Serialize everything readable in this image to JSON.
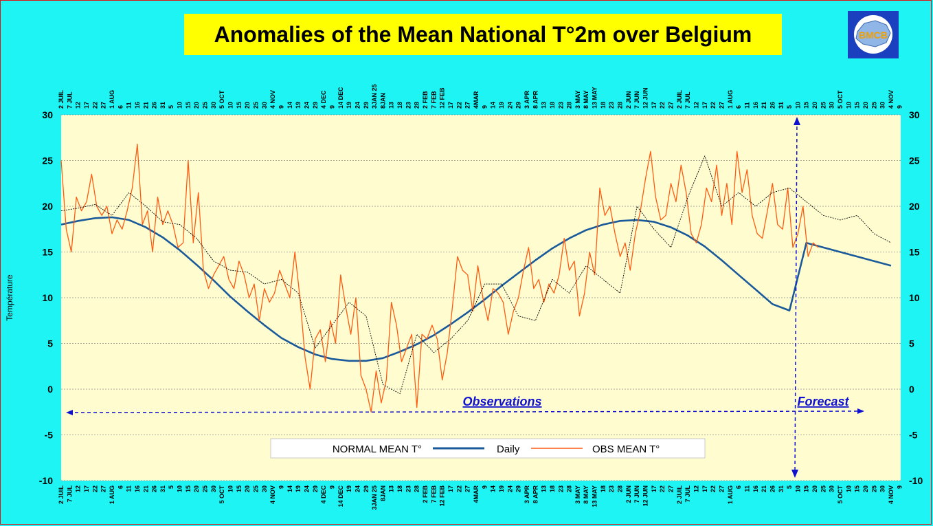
{
  "title": "Anomalies of the Mean National T°2m over Belgium",
  "logo": {
    "text": "BMCB",
    "icon": "belgium-map-logo-icon"
  },
  "colors": {
    "background": "#1ef4f4",
    "plot_bg": "#fffdd0",
    "normal": "#1a5a9a",
    "obs": "#ff5a10",
    "daily_mean": "#000000",
    "annotation": "#1010d0"
  },
  "annotations": {
    "observations": "Observations",
    "forecast": "Forecast"
  },
  "chart_data": {
    "type": "line",
    "ylabel": "Température",
    "ylim": [
      -10,
      30
    ],
    "yticks": [
      -10,
      -5,
      0,
      5,
      10,
      15,
      20,
      25,
      30
    ],
    "grid": true,
    "legend_position": "bottom-center",
    "xlim_days": [
      0,
      490
    ],
    "date_ticks": [
      {
        "label": "2 JUIL",
        "day": 0
      },
      {
        "label": "7 JUL",
        "day": 5
      },
      {
        "label": "12",
        "day": 10
      },
      {
        "label": "17",
        "day": 15
      },
      {
        "label": "22",
        "day": 20
      },
      {
        "label": "27",
        "day": 25
      },
      {
        "label": "1 AUG",
        "day": 30
      },
      {
        "label": "6",
        "day": 35
      },
      {
        "label": "11",
        "day": 40
      },
      {
        "label": "16",
        "day": 45
      },
      {
        "label": "21",
        "day": 50
      },
      {
        "label": "26",
        "day": 55
      },
      {
        "label": "31",
        "day": 60
      },
      {
        "label": "5",
        "day": 65
      },
      {
        "label": "10",
        "day": 70
      },
      {
        "label": "15",
        "day": 75
      },
      {
        "label": "20",
        "day": 80
      },
      {
        "label": "25",
        "day": 85
      },
      {
        "label": "30",
        "day": 90
      },
      {
        "label": "5 OCT",
        "day": 95
      },
      {
        "label": "10",
        "day": 100
      },
      {
        "label": "15",
        "day": 105
      },
      {
        "label": "20",
        "day": 110
      },
      {
        "label": "25",
        "day": 115
      },
      {
        "label": "30",
        "day": 120
      },
      {
        "label": "4 NOV",
        "day": 125
      },
      {
        "label": "9",
        "day": 130
      },
      {
        "label": "14",
        "day": 135
      },
      {
        "label": "19",
        "day": 140
      },
      {
        "label": "24",
        "day": 145
      },
      {
        "label": "29",
        "day": 150
      },
      {
        "label": "4 DEC",
        "day": 155
      },
      {
        "label": "9",
        "day": 160
      },
      {
        "label": "14 DEC",
        "day": 165
      },
      {
        "label": "19",
        "day": 170
      },
      {
        "label": "24",
        "day": 175
      },
      {
        "label": "29",
        "day": 180
      },
      {
        "label": "3JAN 25",
        "day": 185
      },
      {
        "label": "8JAN",
        "day": 190
      },
      {
        "label": "13",
        "day": 195
      },
      {
        "label": "18",
        "day": 200
      },
      {
        "label": "23",
        "day": 205
      },
      {
        "label": "28",
        "day": 210
      },
      {
        "label": "2 FEB",
        "day": 215
      },
      {
        "label": "7 FEB",
        "day": 220
      },
      {
        "label": "12 FEB",
        "day": 225
      },
      {
        "label": "17",
        "day": 230
      },
      {
        "label": "22",
        "day": 235
      },
      {
        "label": "27",
        "day": 240
      },
      {
        "label": "4MAR",
        "day": 245
      },
      {
        "label": "9",
        "day": 250
      },
      {
        "label": "14",
        "day": 255
      },
      {
        "label": "19",
        "day": 260
      },
      {
        "label": "24",
        "day": 265
      },
      {
        "label": "29",
        "day": 270
      },
      {
        "label": "3 APR",
        "day": 275
      },
      {
        "label": "8 APR",
        "day": 280
      },
      {
        "label": "13",
        "day": 285
      },
      {
        "label": "18",
        "day": 290
      },
      {
        "label": "23",
        "day": 295
      },
      {
        "label": "28",
        "day": 300
      },
      {
        "label": "3 MAY",
        "day": 305
      },
      {
        "label": "8 MAY",
        "day": 310
      },
      {
        "label": "13 MAY",
        "day": 315
      },
      {
        "label": "18",
        "day": 320
      },
      {
        "label": "23",
        "day": 325
      },
      {
        "label": "28",
        "day": 330
      },
      {
        "label": "2 JUN",
        "day": 335
      },
      {
        "label": "7 JUN",
        "day": 340
      },
      {
        "label": "12 JUN",
        "day": 345
      },
      {
        "label": "17",
        "day": 350
      },
      {
        "label": "22",
        "day": 355
      },
      {
        "label": "27",
        "day": 360
      },
      {
        "label": "2 JUIL",
        "day": 365
      },
      {
        "label": "7 JUL",
        "day": 370
      },
      {
        "label": "12",
        "day": 375
      },
      {
        "label": "17",
        "day": 380
      },
      {
        "label": "22",
        "day": 385
      },
      {
        "label": "27",
        "day": 390
      },
      {
        "label": "1 AUG",
        "day": 395
      },
      {
        "label": "6",
        "day": 400
      },
      {
        "label": "11",
        "day": 405
      },
      {
        "label": "16",
        "day": 410
      },
      {
        "label": "21",
        "day": 415
      },
      {
        "label": "26",
        "day": 420
      },
      {
        "label": "31",
        "day": 425
      },
      {
        "label": "5",
        "day": 430
      },
      {
        "label": "10",
        "day": 435
      },
      {
        "label": "15",
        "day": 440
      },
      {
        "label": "20",
        "day": 445
      },
      {
        "label": "25",
        "day": 450
      },
      {
        "label": "30",
        "day": 455
      },
      {
        "label": "5 OCT",
        "day": 460
      },
      {
        "label": "10",
        "day": 465
      },
      {
        "label": "15",
        "day": 470
      },
      {
        "label": "20",
        "day": 475
      },
      {
        "label": "25",
        "day": 480
      },
      {
        "label": "30",
        "day": 485
      },
      {
        "label": "4 NOV",
        "day": 490
      },
      {
        "label": "9",
        "day": 495
      }
    ],
    "series": [
      {
        "name": "NORMAL MEAN T°",
        "style": "thin-dotted",
        "x_days": [
          0,
          10,
          20,
          30,
          40,
          50,
          60,
          70,
          80,
          90,
          100,
          110,
          120,
          130,
          140,
          150,
          160,
          170,
          180,
          190,
          200,
          210,
          220,
          230,
          240,
          250,
          260,
          270,
          280,
          290,
          300,
          310,
          320,
          330,
          340,
          350,
          360,
          370,
          380,
          390,
          400,
          410,
          420,
          430,
          440,
          450,
          460,
          470,
          480,
          490
        ],
        "values": [
          19.5,
          19.8,
          20.2,
          19.0,
          21.5,
          20.0,
          18.3,
          18.0,
          16.5,
          14.0,
          13.0,
          12.8,
          11.5,
          12.0,
          10.5,
          4.5,
          7.0,
          9.5,
          8.0,
          0.5,
          -0.5,
          6.0,
          4.0,
          5.5,
          7.5,
          11.5,
          11.5,
          8.0,
          7.5,
          12.0,
          10.5,
          13.5,
          12.0,
          10.5,
          20.0,
          17.5,
          15.5,
          21.0,
          25.5,
          20.0,
          21.5,
          20.0,
          21.5,
          22.0,
          20.5,
          19.0,
          18.5,
          19.0,
          17.0,
          16.0
        ]
      },
      {
        "name": "Daily",
        "style": "thick-solid",
        "x_days": [
          0,
          10,
          20,
          30,
          40,
          50,
          60,
          70,
          80,
          90,
          100,
          110,
          120,
          130,
          140,
          150,
          160,
          170,
          180,
          190,
          200,
          210,
          220,
          230,
          240,
          250,
          260,
          270,
          280,
          290,
          300,
          310,
          320,
          330,
          340,
          350,
          360,
          370,
          380,
          390,
          400,
          410,
          420,
          430,
          440,
          450,
          460,
          470,
          480,
          490
        ],
        "values": [
          18.0,
          18.4,
          18.7,
          18.8,
          18.5,
          17.7,
          16.6,
          15.2,
          13.6,
          11.9,
          10.1,
          8.5,
          7.0,
          5.6,
          4.6,
          3.8,
          3.3,
          3.1,
          3.1,
          3.4,
          4.1,
          4.9,
          5.9,
          7.1,
          8.4,
          9.8,
          11.3,
          12.7,
          14.1,
          15.4,
          16.5,
          17.4,
          18.0,
          18.4,
          18.5,
          18.3,
          17.7,
          16.8,
          15.6,
          14.1,
          12.5,
          10.9,
          9.3,
          8.6,
          16.0,
          15.5,
          15.0,
          14.5,
          14.0,
          13.5
        ]
      },
      {
        "name": "OBS MEAN T°",
        "style": "jagged",
        "x_days": [
          0,
          3,
          6,
          9,
          12,
          15,
          18,
          21,
          24,
          27,
          30,
          33,
          36,
          39,
          42,
          45,
          48,
          51,
          54,
          57,
          60,
          63,
          66,
          69,
          72,
          75,
          78,
          81,
          84,
          87,
          90,
          93,
          96,
          99,
          102,
          105,
          108,
          111,
          114,
          117,
          120,
          123,
          126,
          129,
          132,
          135,
          138,
          141,
          144,
          147,
          150,
          153,
          156,
          159,
          162,
          165,
          168,
          171,
          174,
          177,
          180,
          183,
          186,
          189,
          192,
          195,
          198,
          201,
          204,
          207,
          210,
          213,
          216,
          219,
          222,
          225,
          228,
          231,
          234,
          237,
          240,
          243,
          246,
          249,
          252,
          255,
          258,
          261,
          264,
          267,
          270,
          273,
          276,
          279,
          282,
          285,
          288,
          291,
          294,
          297,
          300,
          303,
          306,
          309,
          312,
          315,
          318,
          321,
          324,
          327,
          330,
          333,
          336,
          339,
          342,
          345,
          348,
          351,
          354,
          357,
          360,
          363,
          366,
          369,
          372,
          375,
          378,
          381,
          384,
          387,
          390,
          393,
          396,
          399,
          402,
          405,
          408,
          411,
          414,
          417,
          420,
          423,
          426,
          429,
          432,
          435,
          438,
          441,
          444,
          447
        ],
        "values": [
          25.0,
          17.5,
          15.0,
          21.0,
          19.5,
          20.5,
          23.5,
          20.0,
          19.0,
          20.0,
          17.0,
          18.5,
          17.5,
          19.5,
          22.0,
          26.8,
          18.0,
          19.5,
          15.0,
          21.0,
          18.0,
          19.5,
          18.0,
          15.5,
          16.0,
          25.0,
          16.0,
          21.5,
          13.0,
          11.0,
          12.5,
          13.5,
          14.5,
          12.0,
          11.0,
          14.0,
          12.5,
          10.0,
          11.5,
          7.5,
          11.0,
          9.5,
          10.5,
          13.0,
          11.5,
          10.0,
          15.0,
          10.0,
          3.5,
          0.0,
          5.5,
          6.5,
          3.0,
          7.5,
          5.0,
          12.5,
          9.0,
          6.0,
          10.0,
          1.5,
          0.0,
          -2.5,
          2.0,
          -1.5,
          1.0,
          9.5,
          7.0,
          3.0,
          4.5,
          6.0,
          -2.0,
          6.0,
          5.5,
          7.0,
          5.5,
          1.0,
          4.0,
          9.0,
          14.5,
          13.0,
          12.5,
          8.5,
          13.5,
          10.0,
          7.5,
          11.0,
          10.5,
          9.5,
          6.0,
          8.5,
          10.0,
          13.0,
          15.5,
          11.0,
          12.0,
          9.5,
          11.5,
          10.5,
          12.5,
          16.5,
          13.0,
          14.0,
          8.0,
          10.5,
          15.0,
          12.5,
          22.0,
          19.0,
          20.0,
          17.0,
          14.5,
          16.0,
          13.0,
          17.0,
          19.5,
          23.0,
          26.0,
          21.0,
          18.5,
          19.0,
          22.5,
          20.5,
          24.5,
          21.5,
          17.0,
          16.0,
          18.0,
          22.0,
          20.5,
          24.5,
          19.0,
          22.5,
          18.0,
          26.0,
          21.5,
          24.0,
          19.0,
          17.0,
          16.5,
          19.5,
          22.5,
          18.0,
          17.5,
          22.0,
          15.5,
          17.0,
          20.0,
          14.5,
          16.0,
          15.5
        ]
      }
    ]
  }
}
